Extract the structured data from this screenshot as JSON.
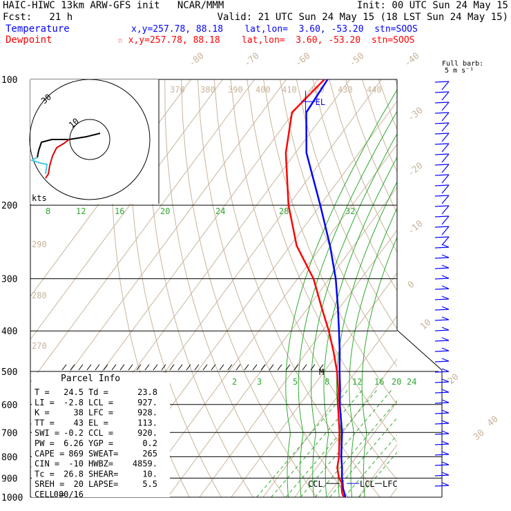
{
  "header": {
    "line1_left": "HAIC-HIWC 13km ARW-GFS init   NCAR/MMM",
    "line1_right": "Init: 00 UTC Sun 24 May 15",
    "line2_left": "Fcst:   21 h",
    "line2_right": "Valid: 21 UTC Sun 24 May 15 (18 LST Sun 24 May 15)",
    "temp_label": "Temperature",
    "temp_info": "x,y=257.78, 88.18    lat,lon=  3.60, -53.20  stn=SOOS",
    "dew_label": "Dewpoint",
    "dew_info": "☆ x,y=257.78, 88.18    lat,lon=  3.60, -53.20  stn=SOOS",
    "temp_color": "#0000ff",
    "dew_color": "#ff0000"
  },
  "chart_data": {
    "type": "line",
    "title": "Skew-T log-P sounding",
    "xlabel": "",
    "ylabel": "",
    "pressure_levels": [
      100,
      200,
      300,
      400,
      500,
      600,
      700,
      800,
      900,
      1000
    ],
    "isotherm_labels": [
      "-80",
      "-70",
      "-60",
      "-50",
      "-40",
      "-30",
      "-20",
      "-10",
      "0",
      "10",
      "20",
      "30",
      "40"
    ],
    "dry_adiabat_labels": [
      "370",
      "380",
      "390",
      "400",
      "410",
      "420",
      "430",
      "440",
      "290",
      "280",
      "270"
    ],
    "moist_adiabat_labels": [
      "8",
      "12",
      "16",
      "20",
      "24",
      "28",
      "32"
    ],
    "mixing_ratio_labels": [
      "2",
      "3",
      "5",
      "8",
      "12",
      "16",
      "20",
      "24"
    ],
    "series": [
      {
        "name": "Temperature",
        "color": "#0000ff",
        "pressure": [
          1000,
          975,
          950,
          925,
          900,
          850,
          800,
          700,
          600,
          550,
          500,
          450,
          400,
          350,
          300,
          250,
          200,
          150,
          120,
          100
        ],
        "temp": [
          25.9,
          24.5,
          23.0,
          21.8,
          20.4,
          18.0,
          15.2,
          9.8,
          2.6,
          -1.0,
          -5.2,
          -9.6,
          -14.8,
          -20.8,
          -28.0,
          -37.5,
          -50.0,
          -66.5,
          -76.0,
          -77.0
        ]
      },
      {
        "name": "Dewpoint",
        "color": "#ff0000",
        "pressure": [
          1000,
          975,
          950,
          925,
          900,
          850,
          800,
          700,
          600,
          550,
          500,
          450,
          400,
          350,
          300,
          250,
          200,
          150,
          120,
          100
        ],
        "temp": [
          25.4,
          23.8,
          22.6,
          21.5,
          19.5,
          16.5,
          14.5,
          9.0,
          2.0,
          -1.6,
          -6.0,
          -11.5,
          -18.0,
          -26.0,
          -35.0,
          -48.0,
          -60.0,
          -73.0,
          -80.5,
          -78.0
        ]
      }
    ],
    "wind_barbs_label": "Full barb:",
    "wind_barbs_unit": "5 m s⁻¹",
    "hodograph": {
      "unit_label": "kts",
      "ring_labels": [
        "10",
        "30"
      ]
    },
    "markers": {
      "el": "EL",
      "ccl": "CCL",
      "lcl": "LCL",
      "lfc": "LFC",
      "m": "M"
    },
    "parcel_info": {
      "title": "Parcel Info",
      "rows": [
        [
          "T  =",
          "24.5",
          "Td =",
          "23.8"
        ],
        [
          "LI =",
          "-2.8",
          "LCL =",
          "927."
        ],
        [
          "K  =",
          "38",
          "LFC =",
          "928."
        ],
        [
          "TT =",
          "43",
          "EL  =",
          "113."
        ],
        [
          "SWI =",
          "-0.2",
          "CCL =",
          "920."
        ],
        [
          "PW =",
          "6.26",
          "YGP =",
          "0.2"
        ],
        [
          "CAPE =",
          "869",
          "SWEAT=",
          "265"
        ],
        [
          "CIN =",
          "-10",
          "HWBZ=",
          "4859."
        ],
        [
          "Tc =",
          "26.8",
          "SHEAR=",
          "10."
        ],
        [
          "SREH =",
          "20",
          "LAPSE=",
          "5.5"
        ],
        [
          "CELL =",
          "080/16",
          "",
          ""
        ]
      ]
    }
  }
}
